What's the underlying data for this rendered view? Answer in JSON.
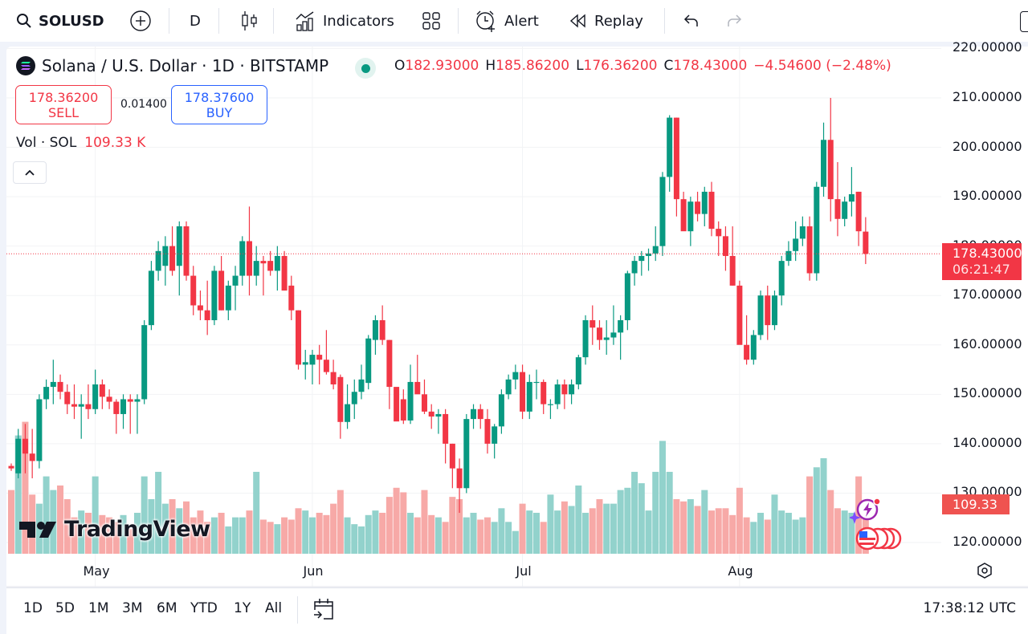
{
  "toolbar": {
    "symbol": "SOLUSD",
    "interval": "D",
    "indicators_label": "Indicators",
    "alert_label": "Alert",
    "replay_label": "Replay"
  },
  "legend": {
    "title": "Solana / U.S. Dollar · 1D · BITSTAMP",
    "o_key": "O",
    "o_val": "182.93000",
    "h_key": "H",
    "h_val": "185.86200",
    "l_key": "L",
    "l_val": "176.36200",
    "c_key": "C",
    "c_val": "178.43000",
    "change": "−4.54600 (−2.48%)"
  },
  "trade": {
    "sell_price": "178.36200",
    "sell_label": "SELL",
    "spread": "0.01400",
    "buy_price": "178.37600",
    "buy_label": "BUY"
  },
  "volume_legend": {
    "label": "Vol · SOL",
    "value": "109.33 K"
  },
  "price_axis": {
    "labels": [
      "220.00000",
      "210.00000",
      "200.00000",
      "190.00000",
      "180.00000",
      "170.00000",
      "160.00000",
      "150.00000",
      "140.00000",
      "130.00000",
      "120.00000"
    ],
    "last_price": "178.43000",
    "countdown": "06:21:47",
    "volume_tag": "109.33 K"
  },
  "time_axis": {
    "months": [
      "May",
      "Jun",
      "Jul",
      "Aug"
    ]
  },
  "watermark": "TradingView",
  "bottombar": {
    "ranges": [
      "1D",
      "5D",
      "1M",
      "3M",
      "6M",
      "YTD",
      "1Y",
      "All"
    ],
    "clock": "17:38:12 UTC"
  },
  "colors": {
    "up": "#089981",
    "down": "#f23645",
    "vol_up": "#92d2cc",
    "vol_down": "#f7a9a7"
  },
  "chart_data": {
    "type": "candlestick",
    "title": "Solana / U.S. Dollar · 1D · BITSTAMP",
    "ylim": [
      117,
      221
    ],
    "yticks": [
      120,
      130,
      140,
      150,
      160,
      170,
      180,
      190,
      200,
      210,
      220
    ],
    "month_ticks": [
      {
        "label": "May",
        "index": 12
      },
      {
        "label": "Jun",
        "index": 43
      },
      {
        "label": "Jul",
        "index": 73
      },
      {
        "label": "Aug",
        "index": 104
      }
    ],
    "last_price": 178.43,
    "grid": true,
    "candles_ohlc": [
      [
        135.5,
        136,
        134.5,
        135
      ],
      [
        134,
        143,
        133,
        141
      ],
      [
        141,
        144,
        134,
        138
      ],
      [
        138,
        143,
        133,
        136.5
      ],
      [
        136.5,
        150,
        135,
        149
      ],
      [
        149,
        153,
        147,
        151.5
      ],
      [
        151.5,
        157,
        148,
        152.5
      ],
      [
        152.5,
        154,
        149,
        150.5
      ],
      [
        150.5,
        152,
        146,
        148
      ],
      [
        148,
        152,
        145,
        147.5
      ],
      [
        147.5,
        150,
        141,
        148
      ],
      [
        148,
        152,
        145,
        147
      ],
      [
        147,
        155,
        146,
        152
      ],
      [
        152,
        153,
        147,
        149.5
      ],
      [
        149.5,
        151,
        147,
        148.5
      ],
      [
        148.5,
        149,
        142,
        146
      ],
      [
        146,
        150,
        143,
        149
      ],
      [
        149,
        150,
        142,
        148.5
      ],
      [
        148.5,
        150,
        142,
        149
      ],
      [
        149,
        165,
        148,
        164
      ],
      [
        164,
        177,
        163,
        175
      ],
      [
        175,
        181,
        173,
        179
      ],
      [
        176,
        182,
        172,
        180
      ],
      [
        180,
        184,
        174,
        175
      ],
      [
        176,
        185,
        170,
        184
      ],
      [
        184,
        185,
        173,
        174
      ],
      [
        174,
        176,
        166,
        168
      ],
      [
        168,
        171,
        165,
        167
      ],
      [
        167,
        173,
        162,
        165
      ],
      [
        165,
        176,
        164,
        175
      ],
      [
        175,
        178,
        167,
        167
      ],
      [
        167,
        173,
        165,
        172
      ],
      [
        172,
        176,
        167,
        174
      ],
      [
        174,
        182,
        172,
        181
      ],
      [
        181,
        188,
        170,
        174
      ],
      [
        174,
        180,
        172,
        177
      ],
      [
        177,
        178,
        170,
        176.5
      ],
      [
        177,
        179,
        174,
        175
      ],
      [
        175,
        180,
        171,
        178
      ],
      [
        178,
        179,
        171,
        171
      ],
      [
        172,
        174,
        165,
        167
      ],
      [
        167,
        167,
        155,
        156
      ],
      [
        156,
        159,
        153,
        156.5
      ],
      [
        156,
        159,
        152,
        158
      ],
      [
        158,
        160,
        152,
        157
      ],
      [
        157,
        163,
        154,
        154.5
      ],
      [
        154.5,
        157,
        151,
        152
      ],
      [
        153.5,
        154,
        141,
        144.4
      ],
      [
        144.4,
        152,
        143,
        148
      ],
      [
        148,
        153,
        145,
        150.5
      ],
      [
        150.5,
        156,
        149,
        153
      ],
      [
        152.3,
        162,
        151,
        161.3
      ],
      [
        161,
        166,
        158,
        165
      ],
      [
        165,
        168,
        160,
        161
      ],
      [
        161,
        161,
        147,
        151.5
      ],
      [
        151.5,
        151,
        147,
        144.5
      ],
      [
        149,
        151,
        144,
        144.7
      ],
      [
        144.7,
        156,
        144,
        152.5
      ],
      [
        152.5,
        158,
        151,
        150
      ],
      [
        150,
        153,
        146,
        146.5
      ],
      [
        146.5,
        148,
        143,
        145.5
      ],
      [
        145.5,
        147,
        142,
        146
      ],
      [
        146,
        147,
        136,
        140
      ],
      [
        140,
        140,
        131,
        135
      ],
      [
        135,
        137,
        126,
        131
      ],
      [
        131,
        146,
        130,
        145
      ],
      [
        145,
        148,
        143,
        147
      ],
      [
        147,
        148,
        143,
        145
      ],
      [
        145,
        147,
        138,
        140
      ],
      [
        140,
        144,
        137,
        143.5
      ],
      [
        143.5,
        151,
        142,
        150
      ],
      [
        150,
        154,
        149,
        153
      ],
      [
        153,
        156,
        151,
        154.5
      ],
      [
        154.5,
        156,
        145,
        146.5
      ],
      [
        146.5,
        154,
        145,
        152.5
      ],
      [
        152.5,
        155,
        149,
        152.5
      ],
      [
        152.5,
        153,
        146,
        148
      ],
      [
        148,
        149,
        145,
        148
      ],
      [
        148,
        153,
        147,
        152
      ],
      [
        152,
        153,
        147,
        150
      ],
      [
        150,
        153,
        148,
        152
      ],
      [
        152,
        158,
        151,
        157.5
      ],
      [
        157.5,
        166,
        156,
        165
      ],
      [
        165,
        168,
        160,
        163.5
      ],
      [
        163.5,
        165,
        159,
        161
      ],
      [
        161,
        165,
        158,
        161.5
      ],
      [
        161.5,
        168,
        160,
        162.5
      ],
      [
        162.5,
        166,
        157,
        165
      ],
      [
        165,
        175,
        163,
        174.5
      ],
      [
        174.5,
        178,
        172,
        177
      ],
      [
        177,
        179,
        174,
        178
      ],
      [
        178,
        179.5,
        175,
        178.5
      ],
      [
        178.5,
        184,
        177,
        180
      ],
      [
        180,
        195,
        178,
        194
      ],
      [
        194,
        206.5,
        191,
        206
      ],
      [
        206,
        206,
        186,
        189.5
      ],
      [
        189.5,
        191,
        184,
        183
      ],
      [
        183,
        190,
        180,
        189
      ],
      [
        189,
        191,
        185,
        186.5
      ],
      [
        186.5,
        192,
        184,
        191
      ],
      [
        191,
        193,
        182,
        183.5
      ],
      [
        183.5,
        185,
        178,
        182
      ],
      [
        182,
        184,
        175,
        178
      ],
      [
        178,
        184,
        172,
        172
      ],
      [
        172,
        173,
        163,
        160
      ],
      [
        160,
        166,
        156,
        157
      ],
      [
        157,
        163,
        156,
        162
      ],
      [
        162,
        171,
        161,
        170
      ],
      [
        170,
        172,
        161,
        164
      ],
      [
        164,
        171,
        163,
        170
      ],
      [
        170,
        178,
        168,
        177
      ],
      [
        177,
        181,
        176,
        179
      ],
      [
        179,
        185,
        177,
        181.5
      ],
      [
        181.5,
        186,
        180,
        184
      ],
      [
        184,
        186,
        173,
        174.5
      ],
      [
        174.5,
        193,
        173,
        192
      ],
      [
        192,
        205,
        190,
        201.5
      ],
      [
        201.5,
        210,
        185,
        189.5
      ],
      [
        189.5,
        197,
        182,
        185.5
      ],
      [
        185.5,
        190,
        184,
        189
      ],
      [
        189,
        196,
        186,
        190.5
      ],
      [
        191,
        191,
        180,
        183
      ],
      [
        182.93,
        185.862,
        176.362,
        178.43
      ]
    ],
    "volume_k": [
      140,
      260,
      290,
      130,
      110,
      170,
      140,
      150,
      120,
      80,
      95,
      90,
      170,
      85,
      80,
      70,
      85,
      55,
      90,
      170,
      120,
      180,
      110,
      120,
      100,
      115,
      80,
      95,
      70,
      80,
      90,
      60,
      80,
      80,
      95,
      180,
      75,
      70,
      65,
      80,
      75,
      100,
      95,
      80,
      90,
      85,
      110,
      140,
      80,
      65,
      60,
      85,
      95,
      90,
      125,
      145,
      135,
      90,
      80,
      140,
      85,
      80,
      70,
      125,
      120,
      80,
      90,
      75,
      80,
      70,
      100,
      70,
      50,
      110,
      95,
      90,
      70,
      130,
      95,
      115,
      105,
      150,
      90,
      100,
      120,
      110,
      110,
      140,
      145,
      180,
      155,
      95,
      180,
      248,
      180,
      120,
      115,
      120,
      105,
      140,
      95,
      100,
      100,
      85,
      145,
      80,
      70,
      90,
      75,
      130,
      95,
      90,
      75,
      80,
      170,
      190,
      210,
      140,
      100,
      95,
      90,
      170,
      109.33
    ]
  }
}
